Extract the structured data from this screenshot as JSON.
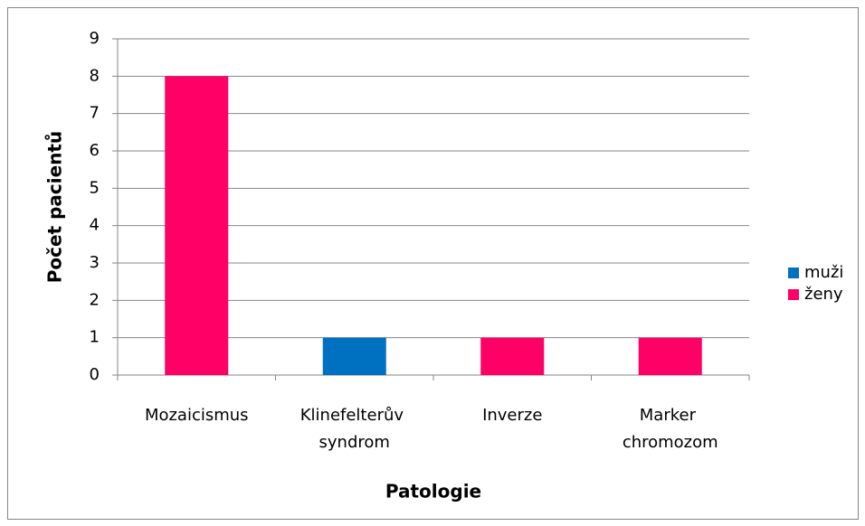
{
  "chart_data": {
    "type": "stacked_bar",
    "x_label": "Patologie",
    "y_label": "Počet pacientů",
    "categories": [
      "Mozaicismus",
      "Klinefelterův syndrom",
      "Inverze",
      "Marker chromozom"
    ],
    "series": [
      {
        "name": "muži",
        "color": "#0070c0",
        "values": [
          0,
          1,
          0,
          0
        ]
      },
      {
        "name": "ženy",
        "color": "#ff0066",
        "values": [
          8,
          0,
          1,
          1
        ]
      }
    ],
    "ylim": [
      0,
      9
    ],
    "yticks": [
      0,
      1,
      2,
      3,
      4,
      5,
      6,
      7,
      8,
      9
    ],
    "grid": true,
    "legend": "right"
  }
}
